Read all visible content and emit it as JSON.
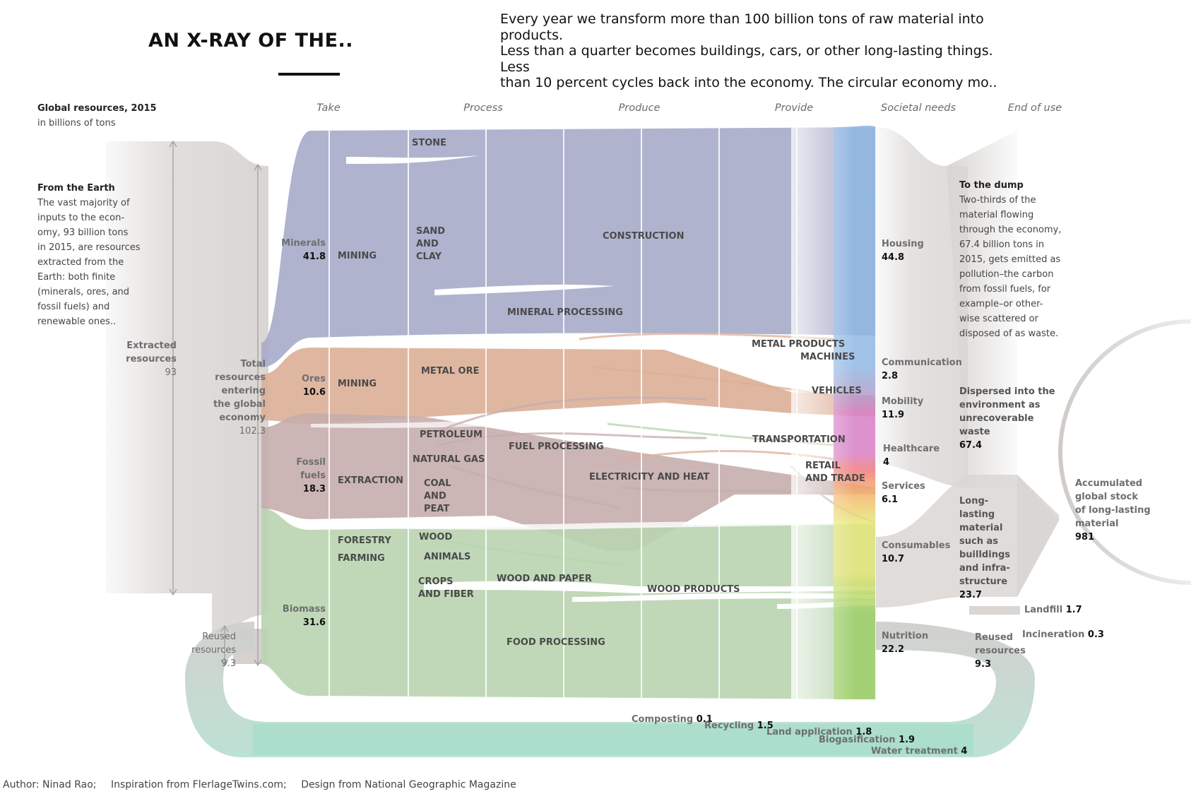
{
  "title": "AN X-RAY OF THE..",
  "subtitle_lines": [
    "Every year we transform more than 100 billion tons of raw material into",
    "products.",
    "Less than a quarter becomes buildings, cars, or other long-lasting things.",
    "Less",
    "than 10 percent cycles back into the economy. The circular economy mo.."
  ],
  "header": {
    "title": "Global resources, 2015",
    "unit": "in billions of tons"
  },
  "stages": [
    "Take",
    "Process",
    "Produce",
    "Provide",
    "Societal needs",
    "End of use"
  ],
  "left_note": {
    "title": "From the Earth",
    "lines": [
      "The vast majority of",
      "inputs to the econ-",
      "omy, 93 billion tons",
      "in 2015, are resources",
      "extracted from the",
      "Earth: both finite",
      "(minerals, ores, and",
      "fossil fuels) and",
      "renewable ones.."
    ]
  },
  "extracted": {
    "lines": [
      "Extracted",
      "resources"
    ],
    "value": "93"
  },
  "total": {
    "lines": [
      "Total",
      "resources",
      "entering",
      "the global",
      "economy"
    ],
    "value": "102.3"
  },
  "reused_left": {
    "lines": [
      "Reused",
      "resources"
    ],
    "value": "9.3"
  },
  "resources": [
    {
      "lines": [
        "Minerals"
      ],
      "value": "41.8"
    },
    {
      "lines": [
        "Ores"
      ],
      "value": "10.6"
    },
    {
      "lines": [
        "Fossil",
        "fuels"
      ],
      "value": "18.3"
    },
    {
      "lines": [
        "Biomass"
      ],
      "value": "31.6"
    }
  ],
  "take_labels": [
    "MINING",
    "MINING",
    "EXTRACTION",
    "FORESTRY",
    "FARMING"
  ],
  "process_labels": [
    "STONE",
    "SAND",
    "AND",
    "CLAY",
    "METAL ORE",
    "PETROLEUM",
    "NATURAL GAS",
    "COAL",
    "AND",
    "PEAT",
    "WOOD",
    "ANIMALS",
    "CROPS",
    "AND FIBER"
  ],
  "produce_labels": [
    "CONSTRUCTION",
    "MINERAL PROCESSING",
    "FUEL PROCESSING",
    "ELECTRICITY AND HEAT",
    "WOOD AND PAPER",
    "WOOD PRODUCTS",
    "FOOD PROCESSING"
  ],
  "provide_labels": [
    "METAL PRODUCTS",
    "MACHINES",
    "VEHICLES",
    "TRANSPORTATION",
    "RETAIL",
    "AND TRADE"
  ],
  "needs": [
    {
      "name": "Housing",
      "value": "44.8",
      "color": "#8fb8e3"
    },
    {
      "name": "Communication",
      "value": "2.8",
      "color": "#a9a3cf"
    },
    {
      "name": "Mobility",
      "value": "11.9",
      "color": "#d77fc6"
    },
    {
      "name": "Healthcare",
      "value": "4",
      "color": "#ef7b7b"
    },
    {
      "name": "Services",
      "value": "6.1",
      "color": "#f6b06b"
    },
    {
      "name": "Consumables",
      "value": "10.7",
      "color": "#e7e678"
    },
    {
      "name": "Nutrition",
      "value": "22.2",
      "color": "#9fd06a"
    }
  ],
  "right_note": {
    "title": "To the dump",
    "lines": [
      "Two-thirds of the",
      "material flowing",
      "through the economy,",
      "67.4 billion tons in",
      "2015, gets emitted as",
      "pollution–the carbon",
      "from fossil fuels, for",
      "example–or other-",
      "wise scattered or",
      "disposed of as waste."
    ]
  },
  "dispersed": {
    "lines": [
      "Dispersed into the",
      "environment as",
      "unrecoverable",
      "waste"
    ],
    "value": "67.4"
  },
  "long_lasting": {
    "lines": [
      "Long-",
      "lasting",
      "material",
      "such as",
      "builldings",
      "and infra-",
      "structure"
    ],
    "value": "23.7"
  },
  "stock": {
    "lines": [
      "Accumulated",
      "global stock",
      "of long-lasting",
      "material"
    ],
    "value": "981"
  },
  "landfill": {
    "label": "Landfill",
    "value": "1.7"
  },
  "incineration": {
    "label": "Incineration",
    "value": "0.3"
  },
  "reused_right": {
    "lines": [
      "Reused",
      "resources"
    ],
    "value": "9.3"
  },
  "recovery": [
    {
      "label": "Composting",
      "value": "0.1"
    },
    {
      "label": "Recycling",
      "value": "1.5"
    },
    {
      "label": "Land application",
      "value": "1.8"
    },
    {
      "label": "Biogasification",
      "value": "1.9"
    },
    {
      "label": "Water treatment",
      "value": "4"
    }
  ],
  "colors": {
    "minerals": "#a7abc9",
    "ores": "#dcaf97",
    "fossil": "#c6adad",
    "biomass": "#b9d4b0",
    "reuse": "#a6ddc9",
    "grey": "#d9d6d4"
  },
  "credits": [
    "Author: Ninad Rao;",
    "Inspiration from FlerlageTwins.com;",
    "Design from National Geographic Magazine"
  ]
}
